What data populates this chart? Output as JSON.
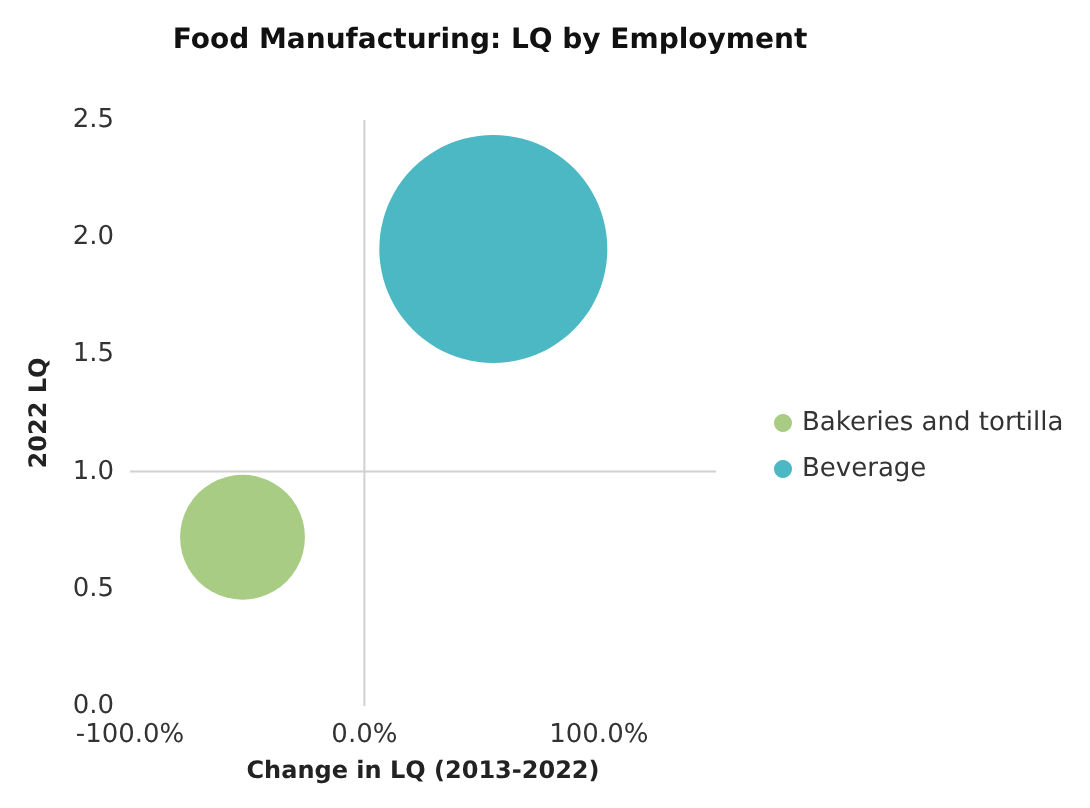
{
  "chart_data": {
    "type": "bubble",
    "title": "Food Manufacturing: LQ by Employment",
    "xlabel": "Change in LQ (2013-2022)",
    "ylabel": "2022 LQ",
    "series": [
      {
        "name": "Bakeries and tortilla",
        "color": "#a9cc84",
        "x": [
          -52
        ],
        "values": [
          0.72
        ],
        "sizes": [
          0.3
        ]
      },
      {
        "name": "Beverage",
        "color": "#4bb8c4",
        "x": [
          55
        ],
        "values": [
          1.95
        ],
        "sizes": [
          1
        ]
      }
    ],
    "xlim": [
      -100,
      150
    ],
    "xticks": [
      {
        "value": -100,
        "label": "-100.0%"
      },
      {
        "value": 0,
        "label": "0.0%"
      },
      {
        "value": 100,
        "label": "100.0%"
      }
    ],
    "ylim": [
      0,
      2.5
    ],
    "yticks": [
      {
        "value": 0,
        "label": "0.0"
      },
      {
        "value": 0.5,
        "label": "0.5"
      },
      {
        "value": 1,
        "label": "1.0"
      },
      {
        "value": 1.5,
        "label": "1.5"
      },
      {
        "value": 2,
        "label": "2.0"
      },
      {
        "value": 2.5,
        "label": "2.5"
      }
    ],
    "ref_lines": [
      {
        "axis": "x",
        "value": 0,
        "color": "#d0d0d0"
      },
      {
        "axis": "y",
        "value": 1,
        "color": "#d0d0d0"
      }
    ],
    "grid": false,
    "legend": "right",
    "marker": "circle"
  }
}
